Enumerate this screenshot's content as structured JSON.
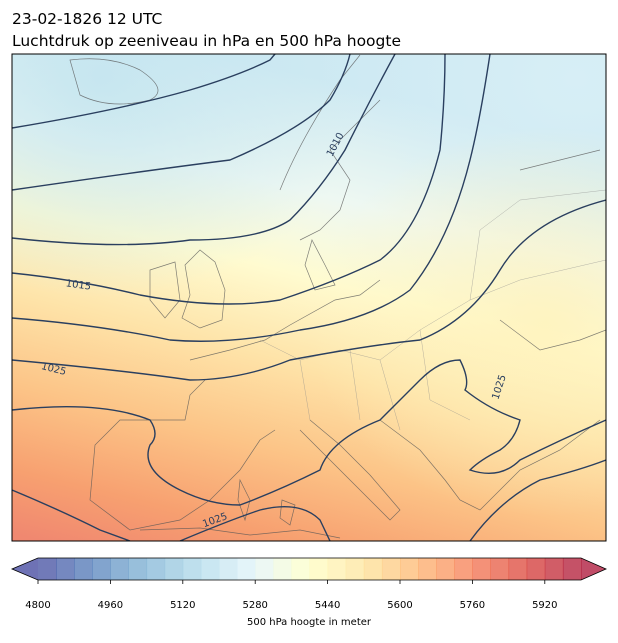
{
  "header": {
    "title": "23-02-1826 12 UTC",
    "subtitle": "Luchtdruk op zeeniveau in hPa en 500 hPa hoogte"
  },
  "contour_labels": [
    1010,
    1015,
    1025,
    1025,
    1025
  ],
  "colorbar": {
    "lim": [
      4800,
      6000
    ],
    "ticks": [
      4800,
      4960,
      5120,
      5280,
      5440,
      5600,
      5760,
      5920
    ],
    "label": "500 hPa hoogte in meter"
  }
}
